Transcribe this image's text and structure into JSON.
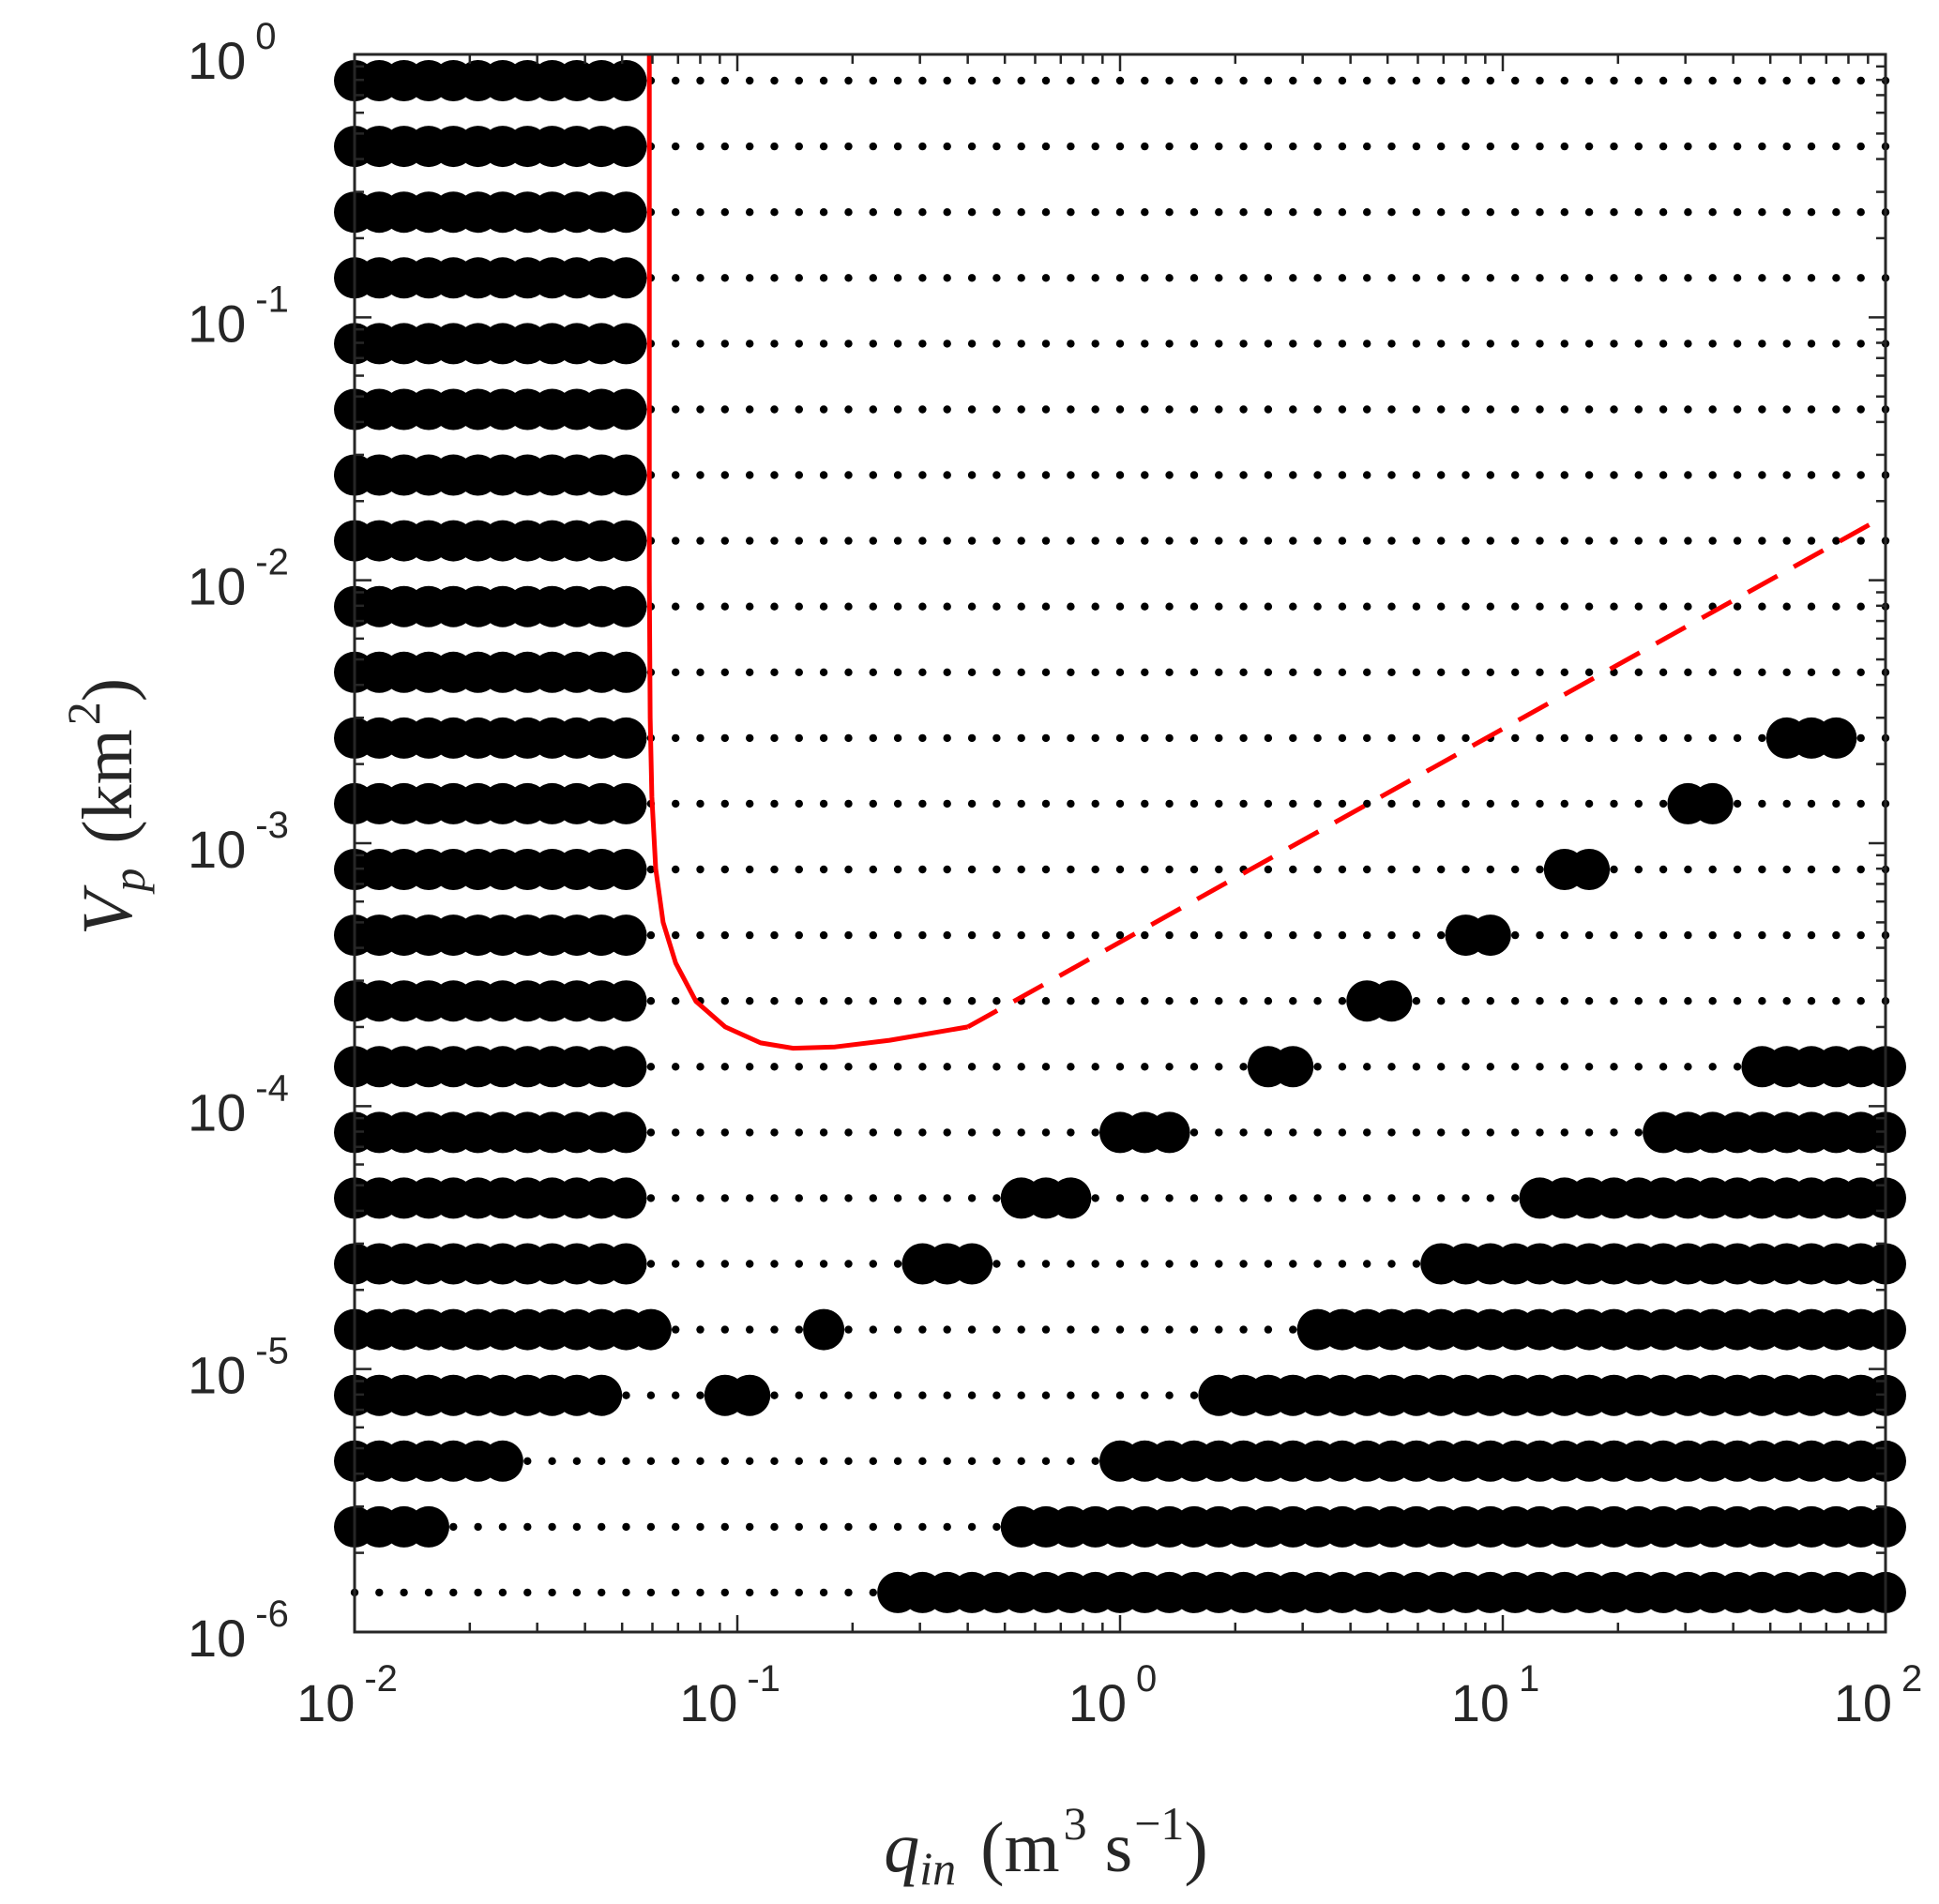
{
  "chart_data": {
    "type": "scatter",
    "title": "",
    "xscale": "log",
    "yscale": "log",
    "xlim": [
      0.01,
      100
    ],
    "ylim": [
      1e-06,
      1
    ],
    "grid": false,
    "xlabel": {
      "symbol": "q",
      "subscript": "in",
      "unit_open": "(m",
      "unit_sup1": "3",
      "unit_mid": " s",
      "unit_sup2": "−1",
      "unit_close": ")"
    },
    "ylabel": {
      "symbol": "V",
      "subscript": "p",
      "unit_open": "(km",
      "unit_sup": "2",
      "unit_close": ")"
    },
    "x_ticks": [
      {
        "value": 0.01,
        "base": "10",
        "exp": "-2"
      },
      {
        "value": 0.1,
        "base": "10",
        "exp": "-1"
      },
      {
        "value": 1,
        "base": "10",
        "exp": "0"
      },
      {
        "value": 10,
        "base": "10",
        "exp": "1"
      },
      {
        "value": 100,
        "base": "10",
        "exp": "2"
      }
    ],
    "y_ticks": [
      {
        "value": 1e-06,
        "base": "10",
        "exp": "-6"
      },
      {
        "value": 1e-05,
        "base": "10",
        "exp": "-5"
      },
      {
        "value": 0.0001,
        "base": "10",
        "exp": "-4"
      },
      {
        "value": 0.001,
        "base": "10",
        "exp": "-3"
      },
      {
        "value": 0.01,
        "base": "10",
        "exp": "-2"
      },
      {
        "value": 0.1,
        "base": "10",
        "exp": "-1"
      },
      {
        "value": 1,
        "base": "10",
        "exp": "0"
      }
    ],
    "grid_sampling": {
      "x_points": 63,
      "x_start_log10": -2,
      "x_end_log10": 2,
      "y_rows_log10": [
        -5.85,
        -5.6,
        -5.35,
        -5.1,
        -4.85,
        -4.6,
        -4.35,
        -4.1,
        -3.85,
        -3.6,
        -3.35,
        -3.1,
        -2.85,
        -2.6,
        -2.35,
        -2.1,
        -1.85,
        -1.6,
        -1.35,
        -1.1,
        -0.85,
        -0.6,
        -0.35,
        -0.1
      ]
    },
    "series": [
      {
        "kind": "large-marker",
        "color": "#000000",
        "rows": [
          {
            "y_log10": -5.85,
            "x_ranges_log10": [
              [
                -0.6,
                2.0
              ]
            ]
          },
          {
            "y_log10": -5.6,
            "x_ranges_log10": [
              [
                -2.0,
                -1.8
              ],
              [
                -1.52,
                -1.52
              ],
              [
                -0.3,
                2.0
              ]
            ]
          },
          {
            "y_log10": -5.35,
            "x_ranges_log10": [
              [
                -2.0,
                -1.6
              ],
              [
                -1.26,
                -1.26
              ],
              [
                0.0,
                2.0
              ]
            ]
          },
          {
            "y_log10": -5.1,
            "x_ranges_log10": [
              [
                -2.0,
                -1.35
              ],
              [
                -1.06,
                -0.98
              ],
              [
                0.26,
                2.0
              ]
            ]
          },
          {
            "y_log10": -4.85,
            "x_ranges_log10": [
              [
                -2.0,
                -1.2
              ],
              [
                -0.8,
                -0.73
              ],
              [
                0.5,
                2.0
              ]
            ]
          },
          {
            "y_log10": -4.6,
            "x_ranges_log10": [
              [
                -2.0,
                -1.26
              ],
              [
                -0.53,
                -0.4
              ],
              [
                0.82,
                2.0
              ]
            ]
          },
          {
            "y_log10": -4.35,
            "x_ranges_log10": [
              [
                -2.0,
                -1.26
              ],
              [
                -0.26,
                -0.13
              ],
              [
                1.08,
                2.0
              ]
            ]
          },
          {
            "y_log10": -4.1,
            "x_ranges_log10": [
              [
                -2.0,
                -1.26
              ],
              [
                0.0,
                0.13
              ],
              [
                1.4,
                2.0
              ]
            ]
          },
          {
            "y_log10": -3.85,
            "x_ranges_log10": [
              [
                -2.0,
                -1.26
              ],
              [
                0.34,
                0.45
              ],
              [
                1.65,
                2.0
              ]
            ]
          },
          {
            "y_log10": -3.6,
            "x_ranges_log10": [
              [
                -2.0,
                -1.26
              ],
              [
                0.6,
                0.73
              ],
              [
                1.97,
                1.97
              ]
            ]
          },
          {
            "y_log10": -3.35,
            "x_ranges_log10": [
              [
                -2.0,
                -1.26
              ],
              [
                0.86,
                1.0
              ]
            ]
          },
          {
            "y_log10": -3.1,
            "x_ranges_log10": [
              [
                -2.0,
                -1.26
              ],
              [
                1.13,
                1.26
              ]
            ]
          },
          {
            "y_log10": -2.85,
            "x_ranges_log10": [
              [
                -2.0,
                -1.26
              ],
              [
                1.45,
                1.55
              ]
            ]
          },
          {
            "y_log10": -2.6,
            "x_ranges_log10": [
              [
                -2.0,
                -1.26
              ],
              [
                1.74,
                1.87
              ]
            ]
          },
          {
            "y_log10": -2.35,
            "x_ranges_log10": [
              [
                -2.0,
                -1.26
              ]
            ]
          },
          {
            "y_log10": -2.1,
            "x_ranges_log10": [
              [
                -2.0,
                -1.26
              ]
            ]
          },
          {
            "y_log10": -1.85,
            "x_ranges_log10": [
              [
                -2.0,
                -1.26
              ]
            ]
          },
          {
            "y_log10": -1.6,
            "x_ranges_log10": [
              [
                -2.0,
                -1.26
              ]
            ]
          },
          {
            "y_log10": -1.35,
            "x_ranges_log10": [
              [
                -2.0,
                -1.26
              ]
            ]
          },
          {
            "y_log10": -1.1,
            "x_ranges_log10": [
              [
                -2.0,
                -1.26
              ]
            ]
          },
          {
            "y_log10": -0.85,
            "x_ranges_log10": [
              [
                -2.0,
                -1.26
              ]
            ]
          },
          {
            "y_log10": -0.6,
            "x_ranges_log10": [
              [
                -2.0,
                -1.26
              ]
            ]
          },
          {
            "y_log10": -0.35,
            "x_ranges_log10": [
              [
                -2.0,
                -1.26
              ]
            ]
          },
          {
            "y_log10": -0.1,
            "x_ranges_log10": [
              [
                -2.0,
                -1.26
              ]
            ]
          }
        ]
      },
      {
        "kind": "small-marker",
        "color": "#000000",
        "description_hidden": true
      },
      {
        "kind": "solid-line",
        "color": "#ff0000",
        "points": [
          [
            0.0589,
            1.0
          ],
          [
            0.0589,
            0.1
          ],
          [
            0.0589,
            0.01
          ],
          [
            0.0592,
            0.003
          ],
          [
            0.0598,
            0.0015
          ],
          [
            0.0612,
            0.0008
          ],
          [
            0.064,
            0.0005
          ],
          [
            0.069,
            0.00035
          ],
          [
            0.078,
            0.00025
          ],
          [
            0.093,
            0.0002
          ],
          [
            0.115,
            0.000174
          ],
          [
            0.14,
            0.000166
          ],
          [
            0.18,
            0.000168
          ],
          [
            0.25,
            0.000178
          ],
          [
            0.4,
            0.0002
          ]
        ]
      },
      {
        "kind": "dashed-line",
        "color": "#ff0000",
        "points": [
          [
            0.4,
            0.0002
          ],
          [
            100,
            0.0176
          ]
        ]
      }
    ]
  }
}
